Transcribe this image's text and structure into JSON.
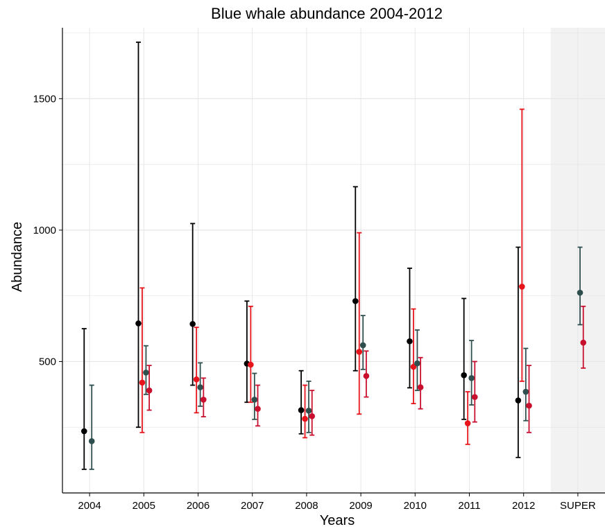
{
  "chart_data": {
    "type": "scatter",
    "title": "Blue whale abundance 2004-2012",
    "xlabel": "Years",
    "ylabel": "Abundance",
    "categories": [
      "2004",
      "2005",
      "2006",
      "2007",
      "2008",
      "2009",
      "2010",
      "2011",
      "2012",
      "SUPER"
    ],
    "y_ticks": [
      500,
      1000,
      1500
    ],
    "ylim": [
      0,
      1770
    ],
    "grid": true,
    "legend": "none",
    "shaded_category": "SUPER",
    "colors": {
      "black": "#000000",
      "red": "#e8141c",
      "darkslate": "#2f4f4f",
      "crimson": "#c8102e",
      "shade": "#f2f2f2",
      "grid": "#e6e6e6"
    },
    "series": [
      {
        "color_key": "black",
        "offset": -0.1,
        "points": [
          {
            "cat": "2004",
            "y": 235,
            "lo": 90,
            "hi": 625
          },
          {
            "cat": "2005",
            "y": 645,
            "lo": 250,
            "hi": 1715
          },
          {
            "cat": "2006",
            "y": 643,
            "lo": 410,
            "hi": 1025
          },
          {
            "cat": "2007",
            "y": 492,
            "lo": 345,
            "hi": 730
          },
          {
            "cat": "2008",
            "y": 315,
            "lo": 225,
            "hi": 465
          },
          {
            "cat": "2009",
            "y": 730,
            "lo": 465,
            "hi": 1165
          },
          {
            "cat": "2010",
            "y": 577,
            "lo": 400,
            "hi": 855
          },
          {
            "cat": "2011",
            "y": 448,
            "lo": 280,
            "hi": 740
          },
          {
            "cat": "2012",
            "y": 352,
            "lo": 135,
            "hi": 935
          }
        ]
      },
      {
        "color_key": "red",
        "offset": -0.03,
        "points": [
          {
            "cat": "2005",
            "y": 420,
            "lo": 230,
            "hi": 780
          },
          {
            "cat": "2006",
            "y": 432,
            "lo": 305,
            "hi": 630
          },
          {
            "cat": "2007",
            "y": 488,
            "lo": 345,
            "hi": 710
          },
          {
            "cat": "2008",
            "y": 282,
            "lo": 210,
            "hi": 410
          },
          {
            "cat": "2009",
            "y": 537,
            "lo": 300,
            "hi": 990
          },
          {
            "cat": "2010",
            "y": 480,
            "lo": 340,
            "hi": 700
          },
          {
            "cat": "2011",
            "y": 265,
            "lo": 185,
            "hi": 385
          },
          {
            "cat": "2012",
            "y": 785,
            "lo": 425,
            "hi": 1460
          }
        ]
      },
      {
        "color_key": "darkslate",
        "offset": 0.04,
        "points": [
          {
            "cat": "2004",
            "y": 197,
            "lo": 90,
            "hi": 410
          },
          {
            "cat": "2005",
            "y": 458,
            "lo": 375,
            "hi": 560
          },
          {
            "cat": "2006",
            "y": 402,
            "lo": 330,
            "hi": 495
          },
          {
            "cat": "2007",
            "y": 355,
            "lo": 280,
            "hi": 455
          },
          {
            "cat": "2008",
            "y": 313,
            "lo": 230,
            "hi": 425
          },
          {
            "cat": "2009",
            "y": 562,
            "lo": 470,
            "hi": 675
          },
          {
            "cat": "2010",
            "y": 493,
            "lo": 390,
            "hi": 620
          },
          {
            "cat": "2011",
            "y": 437,
            "lo": 335,
            "hi": 580
          },
          {
            "cat": "2012",
            "y": 385,
            "lo": 275,
            "hi": 550
          },
          {
            "cat": "SUPER",
            "y": 762,
            "lo": 640,
            "hi": 935
          }
        ]
      },
      {
        "color_key": "crimson",
        "offset": 0.1,
        "points": [
          {
            "cat": "2005",
            "y": 390,
            "lo": 315,
            "hi": 485
          },
          {
            "cat": "2006",
            "y": 355,
            "lo": 290,
            "hi": 437
          },
          {
            "cat": "2007",
            "y": 320,
            "lo": 255,
            "hi": 410
          },
          {
            "cat": "2008",
            "y": 292,
            "lo": 220,
            "hi": 390
          },
          {
            "cat": "2009",
            "y": 445,
            "lo": 365,
            "hi": 540
          },
          {
            "cat": "2010",
            "y": 402,
            "lo": 320,
            "hi": 515
          },
          {
            "cat": "2011",
            "y": 365,
            "lo": 270,
            "hi": 500
          },
          {
            "cat": "2012",
            "y": 332,
            "lo": 230,
            "hi": 485
          },
          {
            "cat": "SUPER",
            "y": 572,
            "lo": 475,
            "hi": 710
          }
        ]
      }
    ]
  }
}
